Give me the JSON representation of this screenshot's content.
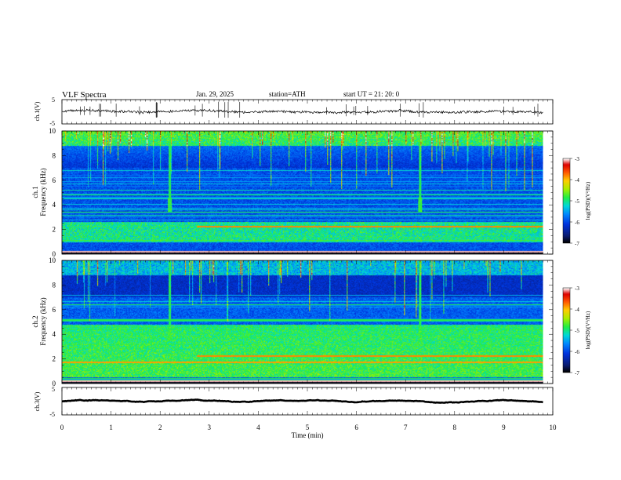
{
  "header": {
    "title": "VLF  Spectra",
    "date": "Jan. 29, 2025",
    "station": "station=ATH",
    "start_ut": "start  UT  =   21: 20: 0"
  },
  "chart_data": [
    {
      "type": "line",
      "name": "ch1-waveform",
      "ylabel": "ch.1(V)",
      "ylim": [
        -5,
        5
      ],
      "yticks": [
        "5",
        "-5"
      ],
      "xlim": [
        0,
        10
      ],
      "baseline": 0,
      "amplitude": 0.6
    },
    {
      "type": "heatmap",
      "name": "ch1-spectrogram",
      "ylabel": "ch.1\nFrequency  (kHz)",
      "ylabel_lines": [
        "ch.1",
        "Frequency  (kHz)"
      ],
      "ylim": [
        0,
        10
      ],
      "yticks": [
        "0",
        "2",
        "4",
        "6",
        "8",
        "10"
      ],
      "xlim": [
        0,
        10
      ],
      "data_end_min": 9.8,
      "colorbar": {
        "label": "log(PSD)(V²/Hz)",
        "range": [
          -7,
          -3
        ],
        "ticks": [
          "-3",
          "-4",
          "-5",
          "-6",
          "-7"
        ]
      },
      "bursts_min": [
        2.2,
        7.3
      ],
      "bright_band_khz": [
        1.0,
        2.6
      ]
    },
    {
      "type": "heatmap",
      "name": "ch2-spectrogram",
      "ylabel": "ch.2\nFrequency  (kHz)",
      "ylabel_lines": [
        "ch.2",
        "Frequency  (kHz)"
      ],
      "ylim": [
        0,
        10
      ],
      "yticks": [
        "0",
        "2",
        "4",
        "6",
        "8",
        "10"
      ],
      "xlim": [
        0,
        10
      ],
      "data_end_min": 9.8,
      "colorbar": {
        "label": "log(PSD)(V²/Hz)",
        "range": [
          -7,
          -3
        ],
        "ticks": [
          "-3",
          "-4",
          "-5",
          "-6",
          "-7"
        ]
      },
      "bursts_min": [
        2.2,
        7.3
      ],
      "bright_band_khz": [
        0.5,
        4.8
      ]
    },
    {
      "type": "line",
      "name": "ch3-waveform",
      "ylabel": "ch.3(V)",
      "ylim": [
        -5,
        5
      ],
      "yticks": [
        "5",
        "-5"
      ],
      "xlim": [
        0,
        10
      ],
      "xticks": [
        "0",
        "1",
        "2",
        "3",
        "4",
        "5",
        "6",
        "7",
        "8",
        "9",
        "10"
      ],
      "xlabel": "Time  (min)",
      "baseline": 0,
      "amplitude": 0.15
    }
  ],
  "colors": {
    "frame": "#000000",
    "background": "#ffffff",
    "colormap": [
      "#000000",
      "#0a1a6e",
      "#0033dd",
      "#0088ff",
      "#00d8d8",
      "#22ee44",
      "#aaee00",
      "#ffcc00",
      "#ff5500",
      "#dd0000",
      "#ffffff"
    ]
  }
}
